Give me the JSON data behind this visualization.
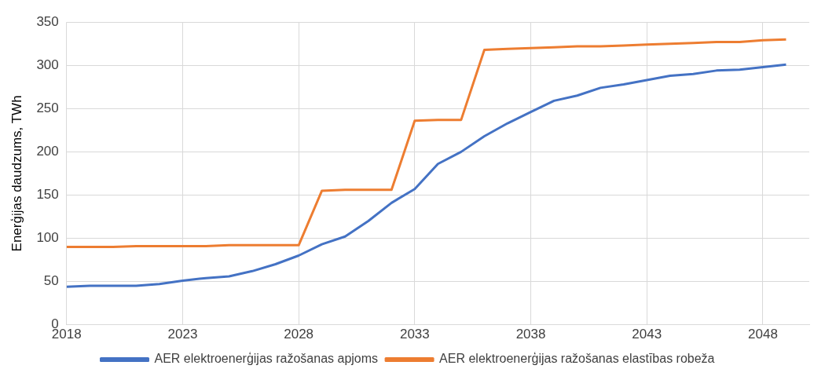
{
  "chart_data": {
    "type": "line",
    "ylabel": "Enerģijas daudzums, TWh",
    "x": [
      2018,
      2019,
      2020,
      2021,
      2022,
      2023,
      2024,
      2025,
      2026,
      2027,
      2028,
      2029,
      2030,
      2031,
      2032,
      2033,
      2034,
      2035,
      2036,
      2037,
      2038,
      2039,
      2040,
      2041,
      2042,
      2043,
      2044,
      2045,
      2046,
      2047,
      2048,
      2049
    ],
    "series": [
      {
        "name": "AER elektroenerģijas ražošanas apjoms",
        "color": "#4472c4",
        "values": [
          44,
          45,
          45,
          45,
          47,
          51,
          54,
          56,
          62,
          70,
          80,
          93,
          102,
          120,
          141,
          157,
          186,
          200,
          218,
          233,
          246,
          259,
          265,
          274,
          278,
          283,
          288,
          290,
          294,
          295,
          298,
          301
        ]
      },
      {
        "name": "AER elektroenerģijas ražošanas elastības robeža",
        "color": "#ed7d31",
        "values": [
          90,
          90,
          90,
          91,
          91,
          91,
          91,
          92,
          92,
          92,
          92,
          155,
          156,
          156,
          156,
          236,
          237,
          237,
          318,
          319,
          320,
          321,
          322,
          322,
          323,
          324,
          325,
          326,
          327,
          327,
          329,
          330
        ]
      }
    ],
    "xlim": [
      2018,
      2050
    ],
    "xticks": [
      2018,
      2023,
      2028,
      2033,
      2038,
      2043,
      2048
    ],
    "ylim": [
      0,
      350
    ],
    "yticks": [
      0,
      50,
      100,
      150,
      200,
      250,
      300,
      350
    ],
    "grid": true,
    "legend": "bottom",
    "marker": "none",
    "line_style": "solid"
  }
}
